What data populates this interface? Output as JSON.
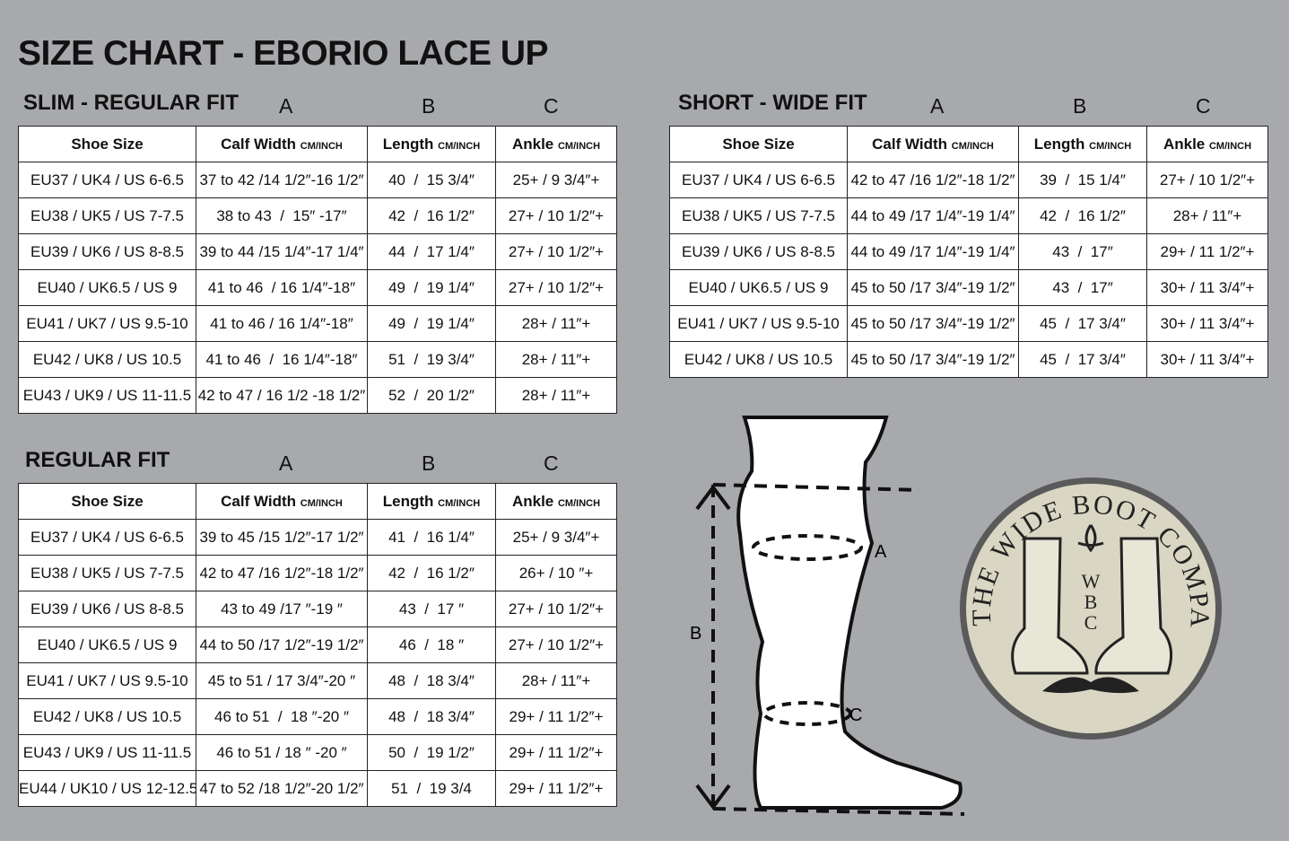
{
  "title": "SIZE CHART - EBORIO LACE UP",
  "column_letters": [
    "A",
    "B",
    "C"
  ],
  "headers": [
    {
      "main": "Shoe Size",
      "unit": ""
    },
    {
      "main": "Calf Width",
      "unit": "CM/INCH"
    },
    {
      "main": "Length",
      "unit": "CM/INCH"
    },
    {
      "main": "Ankle",
      "unit": "CM/INCH"
    }
  ],
  "tables": {
    "slim_regular": {
      "label": "SLIM - REGULAR FIT",
      "rows": [
        [
          "EU37 / UK4 / US 6-6.5",
          "37 to 42 /14 1/2″-16 1/2″",
          "40  /  15 3/4″",
          "25+ / 9 3/4″+"
        ],
        [
          "EU38 / UK5 / US 7-7.5",
          "38 to 43  /  15″ -17″",
          "42  /  16 1/2″",
          "27+ / 10 1/2″+"
        ],
        [
          "EU39 / UK6 / US 8-8.5",
          "39 to 44 /15 1/4″-17 1/4″",
          "44  /  17 1/4″",
          "27+ / 10 1/2″+"
        ],
        [
          "EU40 / UK6.5 / US 9",
          "41 to 46  / 16 1/4″-18″",
          "49  /  19 1/4″",
          "27+ / 10 1/2″+"
        ],
        [
          "EU41 / UK7 / US 9.5-10",
          "41 to 46 / 16 1/4″-18″",
          "49  /  19 1/4″",
          "28+ / 11″+"
        ],
        [
          "EU42 / UK8 / US 10.5",
          "41 to 46  /  16 1/4″-18″",
          "51  /  19 3/4″",
          "28+ / 11″+"
        ],
        [
          "EU43 / UK9 / US 11-11.5",
          "42 to 47 / 16 1/2 -18 1/2″",
          "52  /  20 1/2″",
          "28+ / 11″+"
        ]
      ]
    },
    "short_wide": {
      "label": "SHORT - WIDE FIT",
      "rows": [
        [
          "EU37 / UK4 / US 6-6.5",
          "42 to 47 /16 1/2″-18 1/2″",
          "39  /  15 1/4″",
          "27+ / 10 1/2″+"
        ],
        [
          "EU38 / UK5 / US 7-7.5",
          "44 to 49 /17 1/4″-19 1/4″",
          "42  /  16 1/2″",
          "28+ / 11″+"
        ],
        [
          "EU39 / UK6 / US 8-8.5",
          "44 to 49 /17 1/4″-19 1/4″",
          "43  /  17″",
          "29+ / 11 1/2″+"
        ],
        [
          "EU40 / UK6.5 / US 9",
          "45 to 50 /17 3/4″-19 1/2″",
          "43  /  17″",
          "30+ / 11 3/4″+"
        ],
        [
          "EU41 / UK7 / US 9.5-10",
          "45 to 50 /17 3/4″-19 1/2″",
          "45  /  17 3/4″",
          "30+ / 11 3/4″+"
        ],
        [
          "EU42 / UK8 / US 10.5",
          "45 to 50 /17 3/4″-19 1/2″",
          "45  /  17 3/4″",
          "30+ / 11 3/4″+"
        ]
      ]
    },
    "regular": {
      "label": "REGULAR FIT",
      "rows": [
        [
          "EU37 / UK4 / US 6-6.5",
          "39 to 45 /15 1/2″-17 1/2″",
          "41  /  16 1/4″",
          "25+ / 9 3/4″+"
        ],
        [
          "EU38 / UK5 / US 7-7.5",
          "42 to 47 /16 1/2″-18 1/2″",
          "42  /  16 1/2″",
          "26+ / 10 ″+"
        ],
        [
          "EU39 / UK6 / US 8-8.5",
          "43 to 49 /17 ″-19 ″",
          "43  /  17 ″",
          "27+ / 10 1/2″+"
        ],
        [
          "EU40 / UK6.5 / US 9",
          "44 to 50 /17 1/2″-19 1/2″",
          "46  /  18 ″",
          "27+ / 10 1/2″+"
        ],
        [
          "EU41 / UK7 / US 9.5-10",
          "45 to 51 / 17 3/4″-20 ″",
          "48  /  18 3/4″",
          "28+ / 11″+"
        ],
        [
          "EU42 / UK8 / US 10.5",
          "46 to 51  /  18 ″-20 ″",
          "48  /  18 3/4″",
          "29+ / 11 1/2″+"
        ],
        [
          "EU43 / UK9 / US 11-11.5",
          "46 to 51 / 18 ″ -20 ″",
          "50  /  19 1/2″",
          "29+ / 11 1/2″+"
        ],
        [
          "EU44 / UK10 / US 12-12.5",
          "47 to 52 /18 1/2″-20 1/2″",
          "51  /  19 3/4",
          "29+ / 11 1/2″+"
        ]
      ]
    }
  },
  "diagram": {
    "label_a": "A",
    "label_b": "B",
    "label_c": "C"
  },
  "logo": {
    "text": "THE WIDE BOOT COMPANY",
    "monogram": "WBC"
  }
}
